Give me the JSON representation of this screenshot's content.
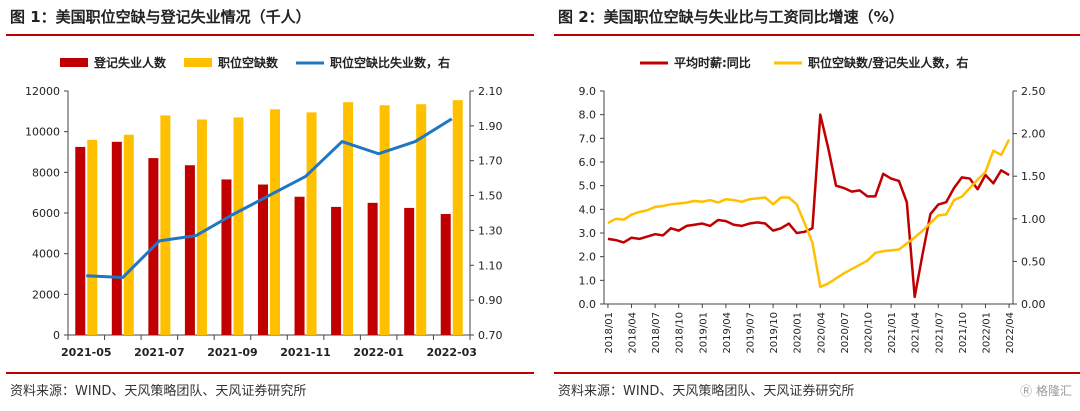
{
  "source_text": "资料来源：WIND、天风策略团队、天风证券研究所",
  "watermark": "格隆汇",
  "colors": {
    "red": "#c00000",
    "yellow": "#ffc000",
    "blue": "#1f77c4",
    "rule": "#c00000"
  },
  "chart_data": [
    {
      "type": "bar",
      "title": "图 1：美国职位空缺与登记失业情况（千人）",
      "categories": [
        "2021-05",
        "2021-06",
        "2021-07",
        "2021-08",
        "2021-09",
        "2021-10",
        "2021-11",
        "2021-12",
        "2022-01",
        "2022-02",
        "2022-03"
      ],
      "x_tick_labels": [
        "2021-05",
        "2021-07",
        "2021-09",
        "2021-11",
        "2022-01",
        "2022-03"
      ],
      "series": [
        {
          "name": "登记失业人数",
          "kind": "bar",
          "axis": "left",
          "color": "#c00000",
          "values": [
            9250,
            9500,
            8700,
            8350,
            7650,
            7400,
            6800,
            6300,
            6500,
            6250,
            5950
          ]
        },
        {
          "name": "职位空缺数",
          "kind": "bar",
          "axis": "left",
          "color": "#ffc000",
          "values": [
            9600,
            9850,
            10800,
            10600,
            10700,
            11100,
            10950,
            11450,
            11300,
            11350,
            11550
          ]
        },
        {
          "name": "职位空缺比失业数，右",
          "kind": "line",
          "axis": "right",
          "color": "#1f77c4",
          "values": [
            1.04,
            1.03,
            1.24,
            1.27,
            1.39,
            1.5,
            1.61,
            1.81,
            1.74,
            1.81,
            1.94
          ]
        }
      ],
      "y_left": {
        "min": 0,
        "max": 12000,
        "ticks": [
          "0",
          "2000",
          "4000",
          "6000",
          "8000",
          "10000",
          "12000"
        ]
      },
      "y_right": {
        "min": 0.7,
        "max": 2.1,
        "ticks": [
          "0.70",
          "0.90",
          "1.10",
          "1.30",
          "1.50",
          "1.70",
          "1.90",
          "2.10"
        ]
      },
      "grid": false,
      "legend": "top"
    },
    {
      "type": "line",
      "title": "图 2：美国职位空缺与失业比与工资同比增速（%）",
      "x": [
        "2018/01",
        "2018/02",
        "2018/03",
        "2018/04",
        "2018/05",
        "2018/06",
        "2018/07",
        "2018/08",
        "2018/09",
        "2018/10",
        "2018/11",
        "2018/12",
        "2019/01",
        "2019/02",
        "2019/03",
        "2019/04",
        "2019/05",
        "2019/06",
        "2019/07",
        "2019/08",
        "2019/09",
        "2019/10",
        "2019/11",
        "2019/12",
        "2020/01",
        "2020/02",
        "2020/03",
        "2020/04",
        "2020/05",
        "2020/06",
        "2020/07",
        "2020/08",
        "2020/09",
        "2020/10",
        "2020/11",
        "2020/12",
        "2021/01",
        "2021/02",
        "2021/03",
        "2021/04",
        "2021/05",
        "2021/06",
        "2021/07",
        "2021/08",
        "2021/09",
        "2021/10",
        "2021/11",
        "2021/12",
        "2022/01",
        "2022/02",
        "2022/03",
        "2022/04"
      ],
      "x_tick_labels": [
        "2018/01",
        "2018/04",
        "2018/07",
        "2018/10",
        "2019/01",
        "2019/04",
        "2019/07",
        "2019/10",
        "2020/01",
        "2020/04",
        "2020/07",
        "2020/10",
        "2021/01",
        "2021/04",
        "2021/07",
        "2021/10",
        "2022/01",
        "2022/04"
      ],
      "series": [
        {
          "name": "平均时薪:同比",
          "axis": "left",
          "color": "#c00000",
          "values": [
            2.75,
            2.7,
            2.6,
            2.8,
            2.75,
            2.85,
            2.95,
            2.9,
            3.2,
            3.1,
            3.3,
            3.35,
            3.4,
            3.3,
            3.55,
            3.5,
            3.35,
            3.3,
            3.4,
            3.45,
            3.4,
            3.1,
            3.2,
            3.4,
            3.0,
            3.05,
            3.2,
            8.0,
            6.6,
            5.0,
            4.9,
            4.75,
            4.8,
            4.55,
            4.55,
            5.5,
            5.3,
            5.2,
            4.3,
            0.3,
            2.1,
            3.8,
            4.2,
            4.3,
            4.9,
            5.35,
            5.3,
            4.85,
            5.45,
            5.1,
            5.65,
            5.45
          ]
        },
        {
          "name": "职位空缺数/登记失业人数，右",
          "axis": "right",
          "color": "#ffc000",
          "values": [
            0.95,
            1.0,
            0.99,
            1.05,
            1.08,
            1.1,
            1.14,
            1.15,
            1.17,
            1.18,
            1.19,
            1.21,
            1.2,
            1.22,
            1.19,
            1.23,
            1.22,
            1.2,
            1.23,
            1.24,
            1.25,
            1.17,
            1.25,
            1.25,
            1.17,
            0.95,
            0.72,
            0.2,
            0.24,
            0.3,
            0.36,
            0.41,
            0.46,
            0.51,
            0.6,
            0.62,
            0.63,
            0.64,
            0.71,
            0.78,
            0.86,
            0.95,
            1.04,
            1.05,
            1.22,
            1.26,
            1.36,
            1.46,
            1.55,
            1.8,
            1.75,
            1.93
          ]
        }
      ],
      "y_left": {
        "min": 0,
        "max": 9,
        "ticks": [
          "0.0",
          "1.0",
          "2.0",
          "3.0",
          "4.0",
          "5.0",
          "6.0",
          "7.0",
          "8.0",
          "9.0"
        ]
      },
      "y_right": {
        "min": 0,
        "max": 2.5,
        "ticks": [
          "0.00",
          "0.50",
          "1.00",
          "1.50",
          "2.00",
          "2.50"
        ]
      },
      "grid": false,
      "legend": "top"
    }
  ]
}
